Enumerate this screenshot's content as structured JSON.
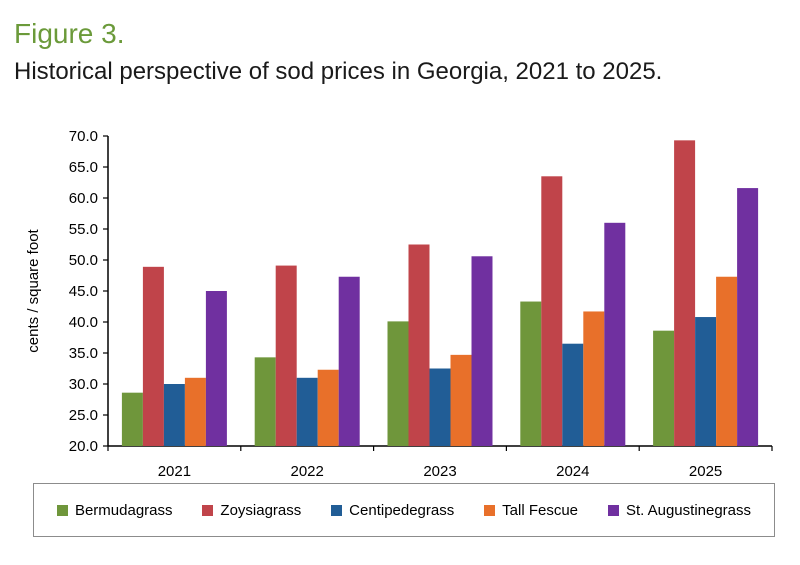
{
  "header": {
    "figure_label": "Figure 3.",
    "title": "Historical perspective of sod prices in Georgia, 2021 to 2025."
  },
  "chart_data": {
    "type": "bar",
    "categories": [
      "2021",
      "2022",
      "2023",
      "2024",
      "2025"
    ],
    "series": [
      {
        "name": "Bermudagrass",
        "color": "#6f963b",
        "values": [
          28.6,
          34.3,
          40.1,
          43.3,
          38.6
        ]
      },
      {
        "name": "Zoysiagrass",
        "color": "#c0444a",
        "values": [
          48.9,
          49.1,
          52.5,
          63.5,
          69.3
        ]
      },
      {
        "name": "Centipedegrass",
        "color": "#215d96",
        "values": [
          30.0,
          31.0,
          32.5,
          36.5,
          40.8
        ]
      },
      {
        "name": "Tall Fescue",
        "color": "#e8702a",
        "values": [
          31.0,
          32.3,
          34.7,
          41.7,
          47.3
        ]
      },
      {
        "name": "St. Augustinegrass",
        "color": "#7030a0",
        "values": [
          45.0,
          47.3,
          50.6,
          56.0,
          61.6
        ]
      }
    ],
    "ylabel": "cents / square foot",
    "xlabel": "",
    "ylim": [
      20,
      70
    ],
    "yticks": [
      "20.0",
      "25.0",
      "30.0",
      "35.0",
      "40.0",
      "45.0",
      "50.0",
      "55.0",
      "60.0",
      "65.0",
      "70.0"
    ],
    "legend_position": "bottom",
    "grid": false
  }
}
